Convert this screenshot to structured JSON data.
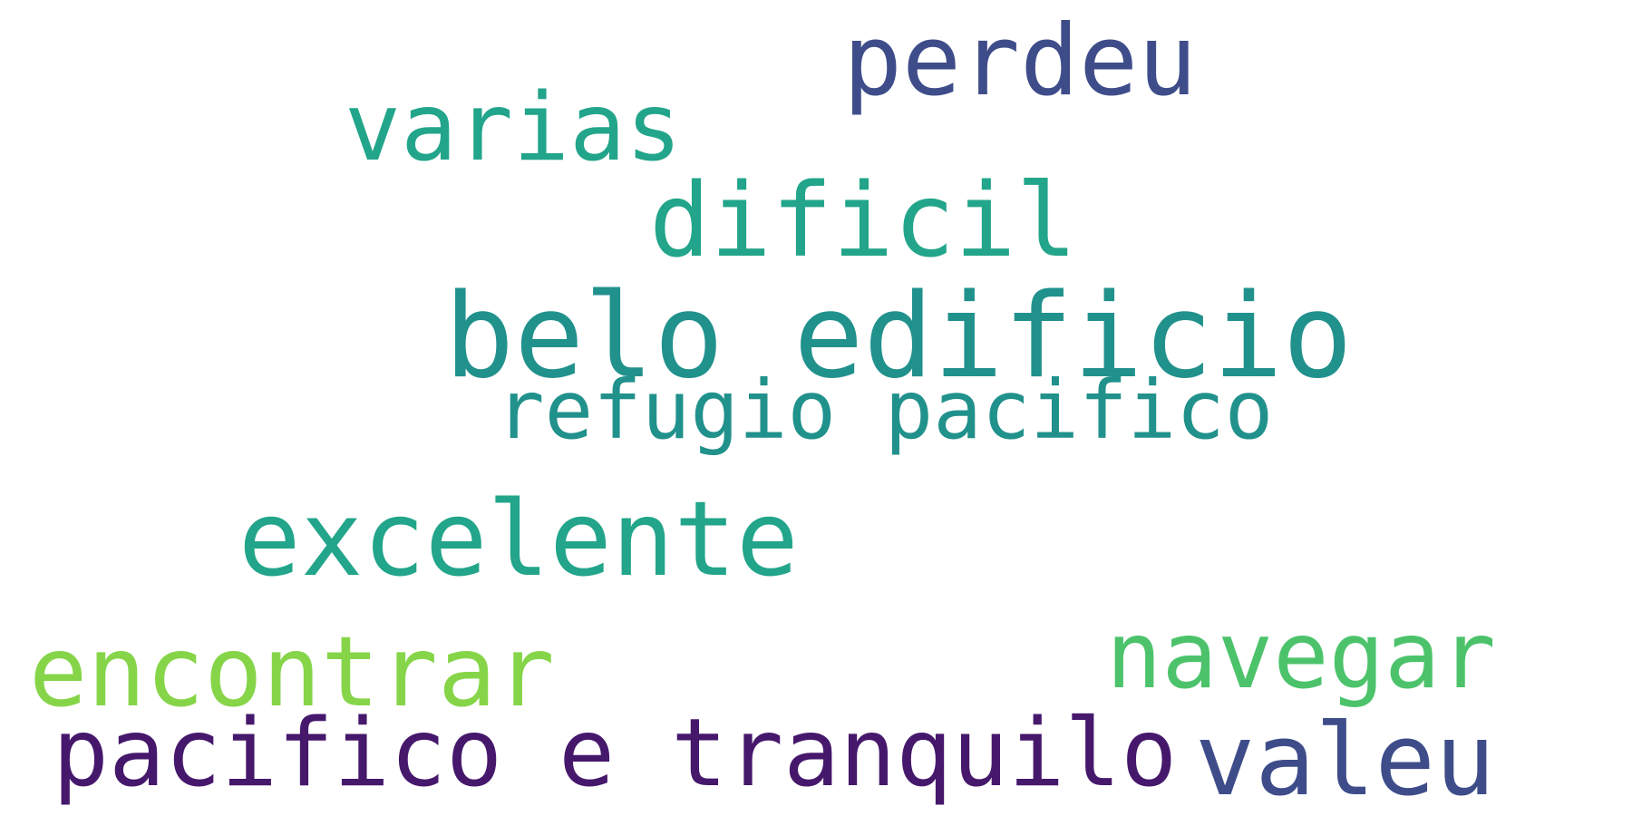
{
  "words": [
    {
      "id": "perdeu",
      "text": "perdeu",
      "color": "#3e4d8a"
    },
    {
      "id": "varias",
      "text": "varias",
      "color": "#22a58a"
    },
    {
      "id": "dificil",
      "text": "dificil",
      "color": "#22a58a"
    },
    {
      "id": "belo",
      "text": "belo edificio",
      "color": "#21918c"
    },
    {
      "id": "refugio",
      "text": "refugio pacifico",
      "color": "#21918c"
    },
    {
      "id": "excelente",
      "text": "excelente",
      "color": "#22a58a"
    },
    {
      "id": "navegar",
      "text": "navegar",
      "color": "#4cc36b"
    },
    {
      "id": "encontrar",
      "text": "encontrar",
      "color": "#86d549"
    },
    {
      "id": "pacifico",
      "text": "pacifico e tranquilo",
      "color": "#46186c"
    },
    {
      "id": "valeu",
      "text": "valeu",
      "color": "#3e4d8a"
    }
  ]
}
